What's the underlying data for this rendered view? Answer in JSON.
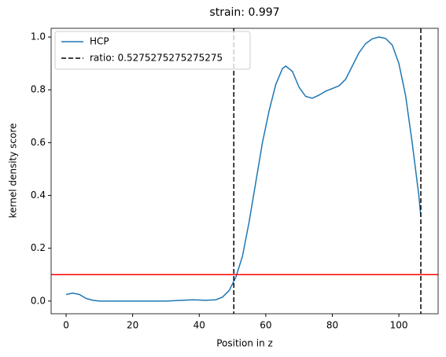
{
  "chart_data": {
    "type": "line",
    "title": "strain: 0.997",
    "xlabel": "Position in z",
    "ylabel": "kernel density score",
    "x": [
      0,
      2,
      4,
      6,
      8,
      10,
      20,
      30,
      35,
      38,
      42,
      45,
      47,
      49,
      51,
      53,
      55,
      57,
      59,
      61,
      63,
      65,
      66,
      68,
      70,
      72,
      74,
      76,
      78,
      80,
      82,
      84,
      86,
      88,
      90,
      92,
      94,
      96,
      98,
      100,
      102,
      104,
      106,
      106.6
    ],
    "series": [
      {
        "name": "HCP",
        "color": "#1f77b4",
        "values": [
          0.025,
          0.03,
          0.025,
          0.01,
          0.003,
          0.0,
          0.0,
          0.0,
          0.003,
          0.005,
          0.003,
          0.005,
          0.015,
          0.04,
          0.09,
          0.17,
          0.3,
          0.45,
          0.6,
          0.72,
          0.82,
          0.88,
          0.89,
          0.87,
          0.81,
          0.775,
          0.768,
          0.78,
          0.795,
          0.805,
          0.815,
          0.84,
          0.89,
          0.94,
          0.975,
          0.993,
          1.0,
          0.995,
          0.97,
          0.9,
          0.78,
          0.6,
          0.4,
          0.32
        ]
      }
    ],
    "vlines": {
      "name": "ratio: 0.5275275275275275",
      "color": "black",
      "values": [
        50.4,
        106.6
      ]
    },
    "hline": {
      "value": 0.1,
      "color": "red"
    },
    "xlim": [
      -4.5,
      111.8
    ],
    "ylim": [
      -0.048,
      1.033
    ],
    "xticks": [
      0,
      20,
      40,
      60,
      80,
      100
    ],
    "yticks": [
      {
        "value": 0,
        "label": "0.0"
      },
      {
        "value": 0.2,
        "label": "0.2"
      },
      {
        "value": 0.4,
        "label": "0.4"
      },
      {
        "value": 0.6,
        "label": "0.6"
      },
      {
        "value": 0.8,
        "label": "0.8"
      },
      {
        "value": 1,
        "label": "1.0"
      }
    ],
    "legend": "upper left"
  }
}
